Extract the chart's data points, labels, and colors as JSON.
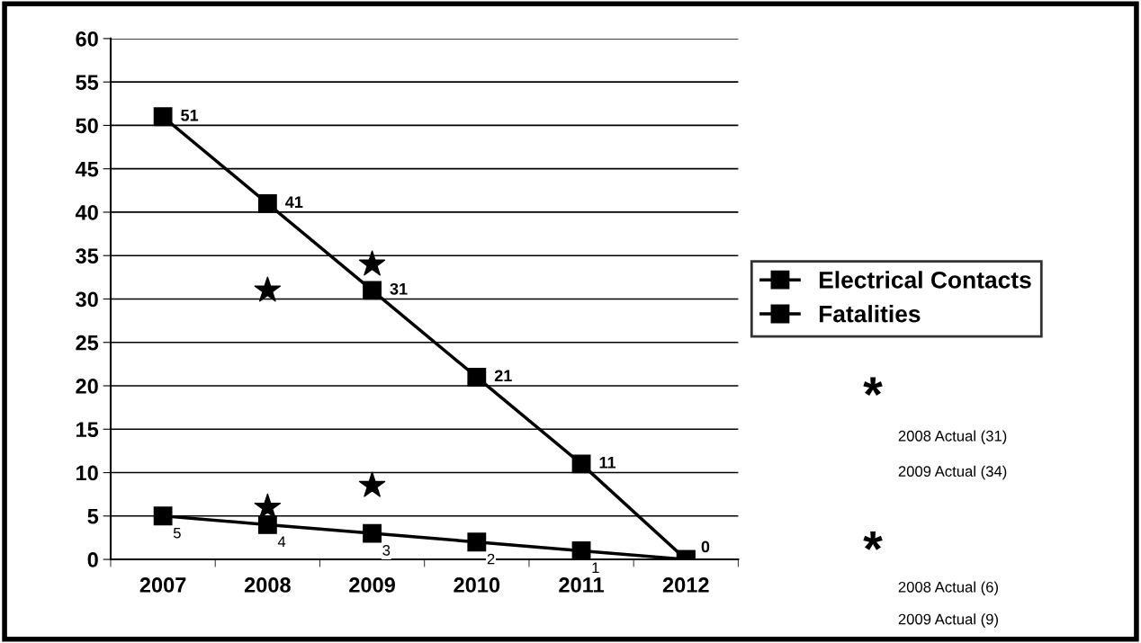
{
  "chart_data": {
    "type": "line",
    "categories": [
      "2007",
      "2008",
      "2009",
      "2010",
      "2011",
      "2012"
    ],
    "series": [
      {
        "name": "Electrical Contacts",
        "color": "#000000",
        "marker": "square",
        "values": [
          51,
          41,
          31,
          21,
          11,
          0
        ],
        "value_labels": [
          "51",
          "41",
          "31",
          "21",
          "11",
          "0"
        ]
      },
      {
        "name": "Fatalities",
        "color": "#000000",
        "marker": "square",
        "values": [
          5,
          4,
          3,
          2,
          1,
          0
        ],
        "value_labels": [
          "5",
          "4",
          "3",
          "2",
          "1",
          null
        ]
      },
      {
        "type": "scatter",
        "color": "#000000",
        "marker": "star",
        "values": [
          null,
          31,
          34,
          null,
          null,
          null
        ]
      },
      {
        "type": "scatter",
        "color": "#000000",
        "marker": "star",
        "values": [
          null,
          6,
          8.5,
          null,
          null,
          null
        ]
      }
    ],
    "ylim": [
      0,
      60
    ],
    "yticks": [
      0,
      5,
      10,
      15,
      20,
      25,
      30,
      35,
      40,
      45,
      50,
      55,
      60
    ],
    "grid": "y",
    "legend": "right",
    "annotations": [
      "*",
      "2008 Actual (31)",
      "2009 Actual (34)",
      "*",
      "2008 Actual (6)",
      "2009 Actual (9)"
    ]
  }
}
